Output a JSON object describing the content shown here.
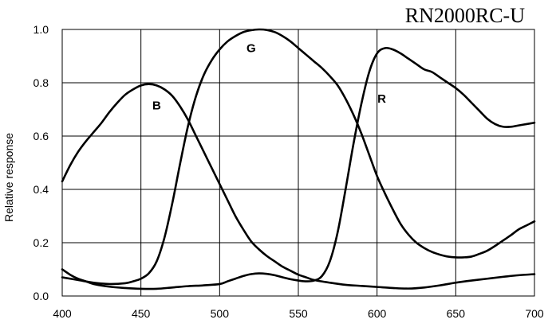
{
  "chart_data": {
    "type": "line",
    "title": "RN2000RC-U",
    "xlabel": "",
    "ylabel": "Relative response",
    "xlim": [
      400,
      700
    ],
    "ylim": [
      0,
      1.0
    ],
    "x_ticks": [
      "400",
      "450",
      "500",
      "550",
      "600",
      "650",
      "700"
    ],
    "y_ticks": [
      "0.0",
      "0.2",
      "0.4",
      "0.6",
      "0.8",
      "1.0"
    ],
    "grid": true,
    "legend": "none",
    "line_color": "#000000",
    "series": [
      {
        "label": "B",
        "label_at": [
          460,
          0.715
        ],
        "points": [
          [
            400,
            0.43
          ],
          [
            405,
            0.49
          ],
          [
            410,
            0.54
          ],
          [
            415,
            0.58
          ],
          [
            420,
            0.615
          ],
          [
            425,
            0.65
          ],
          [
            430,
            0.69
          ],
          [
            435,
            0.725
          ],
          [
            440,
            0.755
          ],
          [
            445,
            0.775
          ],
          [
            450,
            0.79
          ],
          [
            455,
            0.795
          ],
          [
            460,
            0.79
          ],
          [
            465,
            0.775
          ],
          [
            470,
            0.75
          ],
          [
            475,
            0.71
          ],
          [
            480,
            0.66
          ],
          [
            485,
            0.6
          ],
          [
            490,
            0.54
          ],
          [
            495,
            0.48
          ],
          [
            500,
            0.42
          ],
          [
            505,
            0.36
          ],
          [
            510,
            0.3
          ],
          [
            515,
            0.25
          ],
          [
            520,
            0.205
          ],
          [
            525,
            0.175
          ],
          [
            530,
            0.15
          ],
          [
            535,
            0.13
          ],
          [
            540,
            0.11
          ],
          [
            545,
            0.095
          ],
          [
            550,
            0.08
          ],
          [
            555,
            0.07
          ],
          [
            560,
            0.06
          ],
          [
            570,
            0.05
          ],
          [
            580,
            0.042
          ],
          [
            590,
            0.038
          ],
          [
            600,
            0.034
          ],
          [
            610,
            0.03
          ],
          [
            620,
            0.028
          ],
          [
            630,
            0.032
          ],
          [
            640,
            0.04
          ],
          [
            650,
            0.05
          ],
          [
            660,
            0.058
          ],
          [
            670,
            0.065
          ],
          [
            680,
            0.072
          ],
          [
            690,
            0.078
          ],
          [
            700,
            0.082
          ]
        ]
      },
      {
        "label": "G",
        "label_at": [
          520,
          0.93
        ],
        "points": [
          [
            400,
            0.07
          ],
          [
            410,
            0.06
          ],
          [
            420,
            0.05
          ],
          [
            430,
            0.045
          ],
          [
            440,
            0.048
          ],
          [
            445,
            0.055
          ],
          [
            450,
            0.065
          ],
          [
            455,
            0.085
          ],
          [
            460,
            0.13
          ],
          [
            465,
            0.22
          ],
          [
            470,
            0.35
          ],
          [
            475,
            0.5
          ],
          [
            480,
            0.64
          ],
          [
            485,
            0.75
          ],
          [
            490,
            0.83
          ],
          [
            495,
            0.885
          ],
          [
            500,
            0.925
          ],
          [
            505,
            0.955
          ],
          [
            510,
            0.975
          ],
          [
            515,
            0.99
          ],
          [
            520,
            0.997
          ],
          [
            525,
            1.0
          ],
          [
            530,
            0.998
          ],
          [
            535,
            0.99
          ],
          [
            540,
            0.975
          ],
          [
            545,
            0.955
          ],
          [
            550,
            0.93
          ],
          [
            555,
            0.905
          ],
          [
            560,
            0.88
          ],
          [
            565,
            0.855
          ],
          [
            570,
            0.825
          ],
          [
            575,
            0.79
          ],
          [
            580,
            0.74
          ],
          [
            585,
            0.68
          ],
          [
            590,
            0.61
          ],
          [
            595,
            0.53
          ],
          [
            600,
            0.45
          ],
          [
            605,
            0.385
          ],
          [
            610,
            0.325
          ],
          [
            615,
            0.27
          ],
          [
            620,
            0.23
          ],
          [
            625,
            0.2
          ],
          [
            630,
            0.18
          ],
          [
            635,
            0.165
          ],
          [
            640,
            0.155
          ],
          [
            645,
            0.148
          ],
          [
            650,
            0.145
          ],
          [
            655,
            0.145
          ],
          [
            660,
            0.148
          ],
          [
            665,
            0.158
          ],
          [
            670,
            0.17
          ],
          [
            675,
            0.188
          ],
          [
            680,
            0.208
          ],
          [
            685,
            0.228
          ],
          [
            690,
            0.25
          ],
          [
            695,
            0.265
          ],
          [
            700,
            0.28
          ]
        ]
      },
      {
        "label": "R",
        "label_at": [
          603,
          0.74
        ],
        "points": [
          [
            400,
            0.1
          ],
          [
            405,
            0.08
          ],
          [
            410,
            0.065
          ],
          [
            415,
            0.055
          ],
          [
            420,
            0.045
          ],
          [
            430,
            0.035
          ],
          [
            440,
            0.03
          ],
          [
            450,
            0.027
          ],
          [
            460,
            0.027
          ],
          [
            470,
            0.032
          ],
          [
            480,
            0.037
          ],
          [
            490,
            0.04
          ],
          [
            500,
            0.045
          ],
          [
            505,
            0.055
          ],
          [
            510,
            0.065
          ],
          [
            515,
            0.075
          ],
          [
            520,
            0.082
          ],
          [
            525,
            0.085
          ],
          [
            530,
            0.083
          ],
          [
            535,
            0.078
          ],
          [
            540,
            0.07
          ],
          [
            545,
            0.063
          ],
          [
            550,
            0.058
          ],
          [
            555,
            0.055
          ],
          [
            560,
            0.058
          ],
          [
            565,
            0.075
          ],
          [
            570,
            0.13
          ],
          [
            575,
            0.24
          ],
          [
            580,
            0.4
          ],
          [
            585,
            0.57
          ],
          [
            590,
            0.72
          ],
          [
            595,
            0.84
          ],
          [
            600,
            0.91
          ],
          [
            605,
            0.93
          ],
          [
            610,
            0.925
          ],
          [
            615,
            0.91
          ],
          [
            620,
            0.89
          ],
          [
            625,
            0.87
          ],
          [
            630,
            0.85
          ],
          [
            635,
            0.84
          ],
          [
            640,
            0.82
          ],
          [
            645,
            0.8
          ],
          [
            650,
            0.78
          ],
          [
            655,
            0.755
          ],
          [
            660,
            0.725
          ],
          [
            665,
            0.695
          ],
          [
            670,
            0.665
          ],
          [
            675,
            0.645
          ],
          [
            680,
            0.635
          ],
          [
            685,
            0.635
          ],
          [
            690,
            0.64
          ],
          [
            695,
            0.645
          ],
          [
            700,
            0.65
          ]
        ]
      }
    ]
  }
}
